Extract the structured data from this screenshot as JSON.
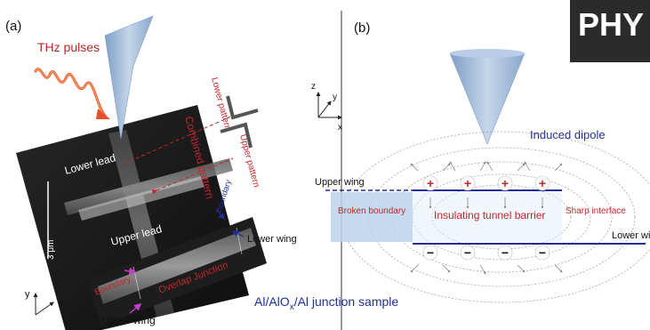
{
  "panel_a": {
    "label": "(a)",
    "thz_pulses": "THz pulses",
    "lower_lead": "Lower lead",
    "upper_lead": "Upper lead",
    "combined_pattern": "Combined pattern",
    "lower_pattern": "Lower pattern",
    "upper_pattern": "Upper pattern",
    "scale_bar": "3 μm",
    "boundary_top": "Boundary",
    "boundary_left": "Boundary",
    "lower_wing": "Lower wing",
    "overlap_junction": "Overlap Junction",
    "upper_wing": "Upper wing",
    "axis_y": "y",
    "axis_x": "x",
    "sample_prefix": "Al/AlO",
    "sample_sub": "x",
    "sample_suffix": "/Al junction sample"
  },
  "panel_b": {
    "label": "(b)",
    "axis_z": "z",
    "axis_y": "y",
    "axis_x": "x",
    "induced_dipole": "Induced dipole",
    "upper_wing": "Upper wing",
    "lower_wing": "Lower wing",
    "broken_boundary": "Broken boundary",
    "insulating_barrier": "Insulating tunnel barrier",
    "sharp_interface": "Sharp interface",
    "plus": "+",
    "minus": "−"
  },
  "logo": {
    "text": "PHY"
  },
  "colors": {
    "red": "#c0262c",
    "blue": "#1f2f9a",
    "tip": "#9db7d8",
    "barrier": "#bcd3ec",
    "sem_bg": "#1a1a1a",
    "logo_bg": "#2b2b2b"
  }
}
